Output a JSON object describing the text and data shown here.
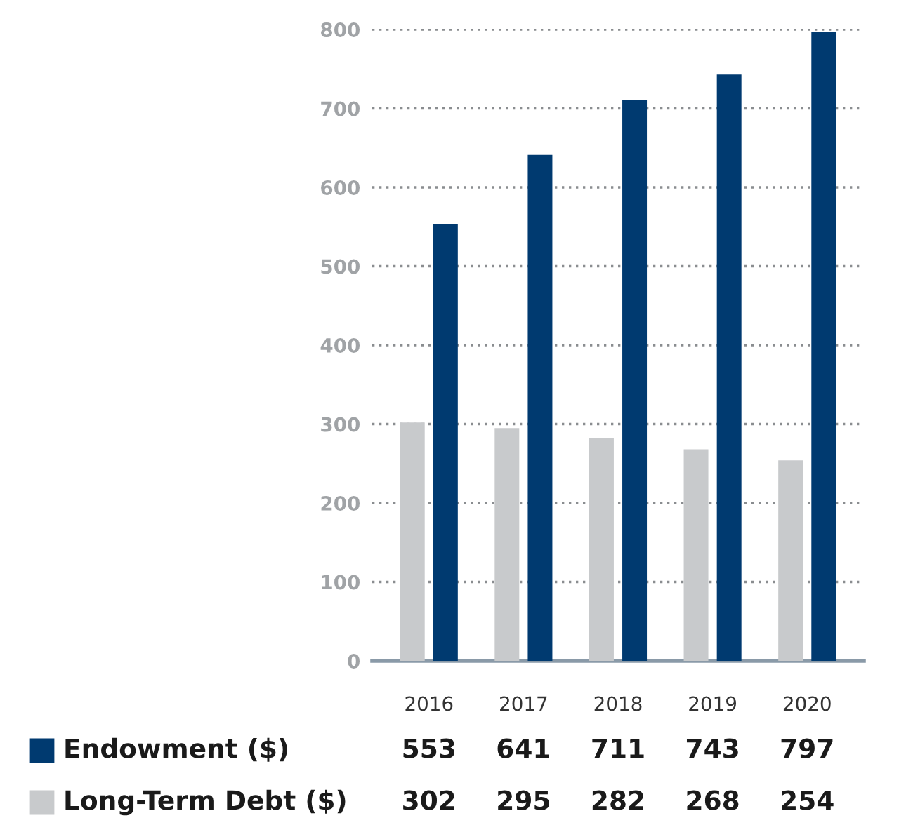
{
  "chart_data": {
    "type": "bar",
    "categories": [
      "2016",
      "2017",
      "2018",
      "2019",
      "2020"
    ],
    "series": [
      {
        "name": "Endowment ($)",
        "color": "#003a70",
        "values": [
          553,
          641,
          711,
          743,
          797
        ]
      },
      {
        "name": "Long-Term Debt ($)",
        "color": "#c8cacc",
        "values": [
          302,
          295,
          282,
          268,
          254
        ]
      }
    ],
    "ylim": [
      0,
      800
    ],
    "yticks": [
      0,
      100,
      200,
      300,
      400,
      500,
      600,
      700,
      800
    ],
    "grid": "y",
    "data_labels": true,
    "legend": "bottom left"
  }
}
